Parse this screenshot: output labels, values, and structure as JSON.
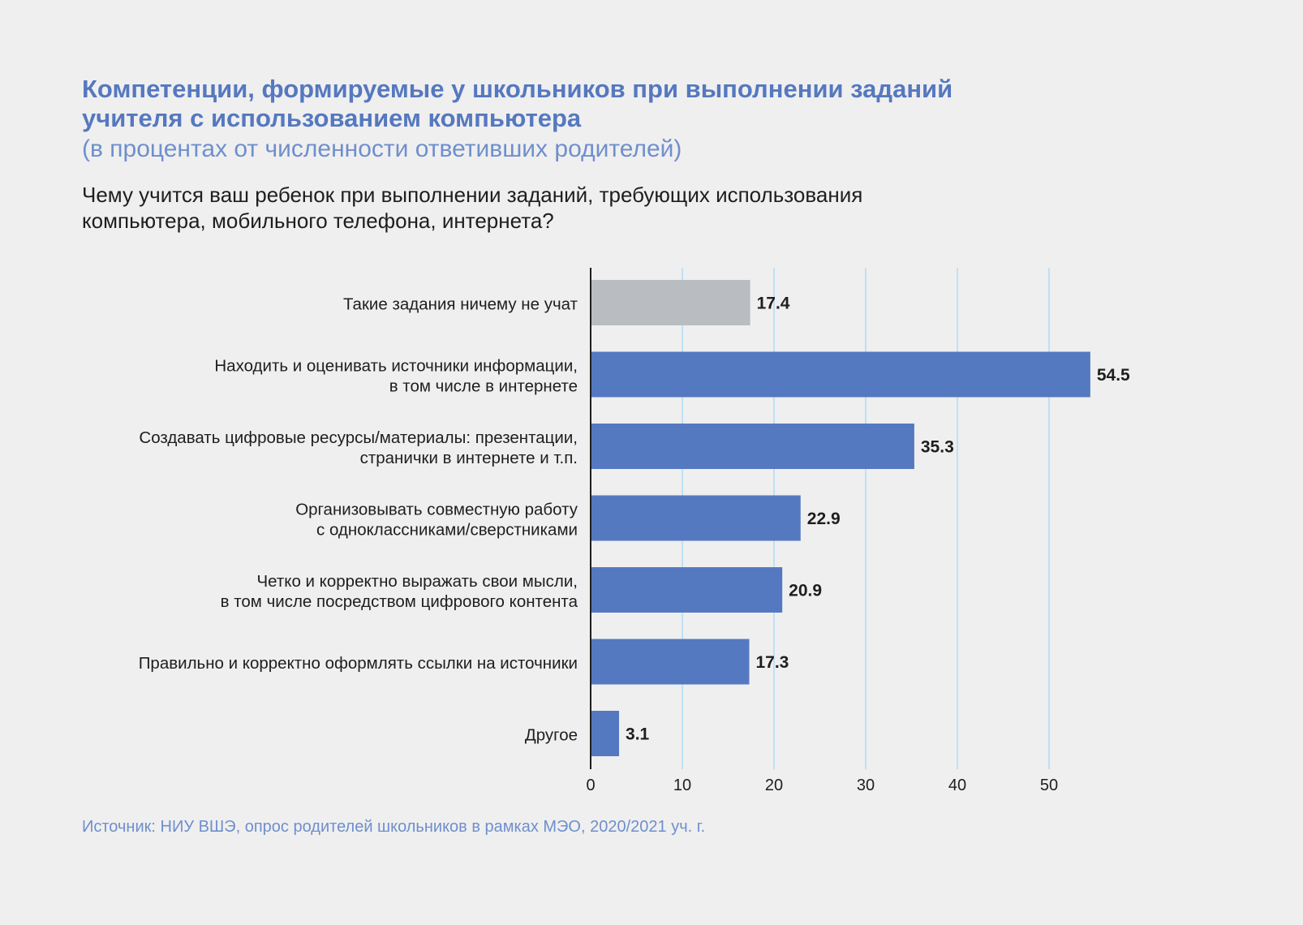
{
  "header": {
    "title_lines": [
      "Компетенции, формируемые у школьников при выполнении заданий",
      "учителя с использованием компьютера"
    ],
    "subtitle": "(в процентах от численности ответивших родителей)",
    "question_lines": [
      "Чему учится ваш ребенок при выполнении заданий, требующих использования",
      "компьютера, мобильного телефона, интернета?"
    ]
  },
  "chart_data": {
    "type": "bar",
    "orientation": "horizontal",
    "categories": [
      [
        "Такие задания ничему не учат"
      ],
      [
        "Находить и оценивать источники информации,",
        "в том числе в интернете"
      ],
      [
        "Создавать цифровые ресурсы/материалы: презентации,",
        "странички в интернете и т.п."
      ],
      [
        "Организовывать совместную работу",
        "с одноклассниками/сверстниками"
      ],
      [
        "Четко и корректно выражать свои мысли,",
        "в том числе посредством цифрового контента"
      ],
      [
        "Правильно и корректно оформлять ссылки на источники"
      ],
      [
        "Другое"
      ]
    ],
    "values": [
      17.4,
      54.5,
      35.3,
      22.9,
      20.9,
      17.3,
      3.1
    ],
    "value_labels": [
      "17.4",
      "54.5",
      "35.3",
      "22.9",
      "20.9",
      "17.3",
      "3.1"
    ],
    "bar_colors": [
      "#b9bcc1",
      "#5579c0",
      "#5579c0",
      "#5579c0",
      "#5579c0",
      "#5579c0",
      "#5579c0"
    ],
    "xlim": [
      0,
      60
    ],
    "xticks": [
      0,
      10,
      20,
      30,
      40,
      50
    ],
    "xtick_labels": [
      "0",
      "10",
      "20",
      "30",
      "40",
      "50"
    ],
    "grid": true,
    "grid_color": "#bfe0f5",
    "axis_color": "#1e1e1e"
  },
  "footer": {
    "source": "Источник: НИУ ВШЭ, опрос родителей школьников в рамках МЭО, 2020/2021 уч. г."
  }
}
